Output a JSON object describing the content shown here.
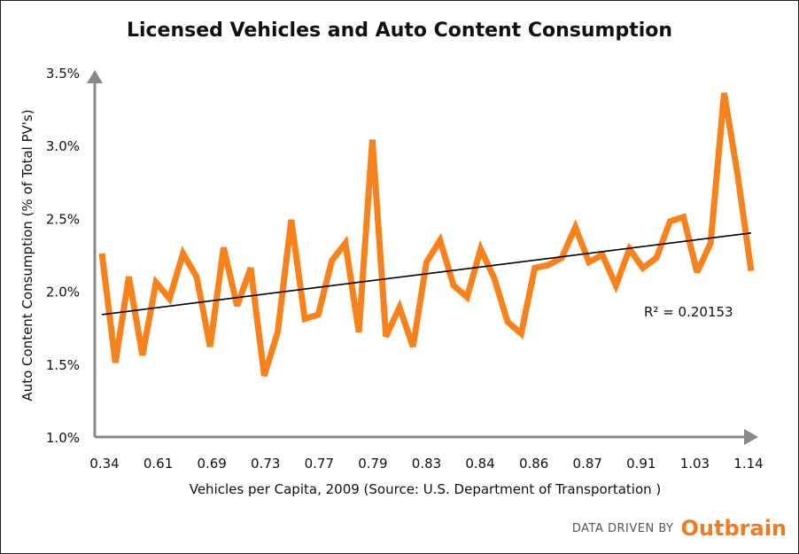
{
  "footer": {
    "text": "DATA DRIVEN BY",
    "brand": "Outbrain",
    "brand_color": "#f47a20"
  },
  "colors": {
    "line": "#f7821b",
    "trend": "#000000",
    "axis": "#888888"
  },
  "chart_data": {
    "type": "line",
    "title": "Licensed Vehicles and Auto Content Consumption",
    "xlabel": "Vehicles per Capita, 2009 (Source: U.S. Department of Transportation )",
    "ylabel": "Auto Content Consumption (% of Total PV's)",
    "x_tick_labels": [
      "0.34",
      "0.61",
      "0.69",
      "0.73",
      "0.77",
      "0.79",
      "0.83",
      "0.84",
      "0.86",
      "0.87",
      "0.91",
      "1.03",
      "1.14"
    ],
    "y_tick_labels": [
      "1.0%",
      "1.5%",
      "2.0%",
      "2.5%",
      "3.0%",
      "3.5%"
    ],
    "ylim": [
      1.0,
      3.5
    ],
    "grid": false,
    "series": [
      {
        "values": [
          2.26,
          1.51,
          2.1,
          1.56,
          2.06,
          1.95,
          2.26,
          2.1,
          1.62,
          2.3,
          1.9,
          2.16,
          1.42,
          1.72,
          2.49,
          1.81,
          1.84,
          2.21,
          2.33,
          1.72,
          3.04,
          1.69,
          1.89,
          1.62,
          2.2,
          2.35,
          2.04,
          1.96,
          2.29,
          2.09,
          1.79,
          1.71,
          2.16,
          2.18,
          2.23,
          2.44,
          2.2,
          2.25,
          2.04,
          2.29,
          2.16,
          2.23,
          2.48,
          2.51,
          2.13,
          2.33,
          3.36,
          2.8,
          2.14
        ]
      }
    ],
    "trendline": {
      "start": 1.84,
      "end": 2.4,
      "r_squared_label": "R² = 0.20153"
    }
  }
}
